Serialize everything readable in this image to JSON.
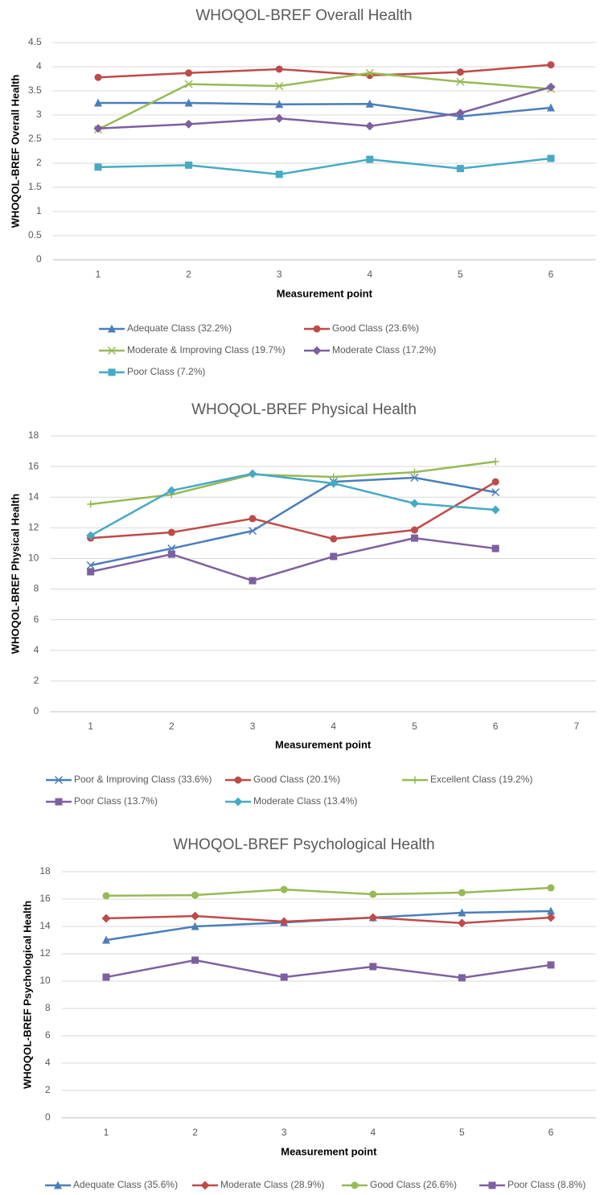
{
  "chart_data": [
    {
      "type": "line",
      "title": "WHOQOL-BREF Overall Health",
      "x_label": "Measurement point",
      "y_label": "WHOQOL-BREF Overall Health",
      "categories": [
        1,
        2,
        3,
        4,
        5,
        6
      ],
      "ylim": [
        0,
        4.5
      ],
      "yticks": [
        0,
        0.5,
        1,
        1.5,
        2,
        2.5,
        3,
        3.5,
        4,
        4.5
      ],
      "grid": true,
      "series": [
        {
          "name": "Adequate Class (32.2%)",
          "color": "#4a7ebb",
          "marker": "triangle",
          "values": [
            3.25,
            3.25,
            3.22,
            3.23,
            2.97,
            3.15
          ]
        },
        {
          "name": "Good Class (23.6%)",
          "color": "#be4b48",
          "marker": "circle",
          "values": [
            3.78,
            3.87,
            3.95,
            3.82,
            3.89,
            4.04
          ]
        },
        {
          "name": "Moderate & Improving Class (19.7%)",
          "color": "#98b954",
          "marker": "x",
          "values": [
            2.7,
            3.64,
            3.6,
            3.87,
            3.69,
            3.54
          ]
        },
        {
          "name": "Moderate Class (17.2%)",
          "color": "#7d60a0",
          "marker": "diamond",
          "values": [
            2.72,
            2.81,
            2.93,
            2.77,
            3.04,
            3.58
          ]
        },
        {
          "name": "Poor Class (7.2%)",
          "color": "#46aac5",
          "marker": "square",
          "values": [
            1.92,
            1.96,
            1.77,
            2.08,
            1.89,
            2.1
          ]
        }
      ]
    },
    {
      "type": "line",
      "title": "WHOQOL-BREF Physical Health",
      "x_label": "Measurement point",
      "y_label": "WHOQOL-BREF Physical Health",
      "categories": [
        1,
        2,
        3,
        4,
        5,
        6,
        7
      ],
      "ylim": [
        0,
        18
      ],
      "yticks": [
        0,
        2,
        4,
        6,
        8,
        10,
        12,
        14,
        16,
        18
      ],
      "grid": true,
      "series": [
        {
          "name": "Poor & Improving Class (33.6%)",
          "color": "#4a7ebb",
          "marker": "x",
          "values": [
            9.55,
            10.65,
            11.8,
            15.0,
            15.27,
            14.32,
            null
          ]
        },
        {
          "name": "Good Class (20.1%)",
          "color": "#be4b48",
          "marker": "circle",
          "values": [
            11.33,
            11.7,
            12.6,
            11.28,
            11.86,
            15.0,
            null
          ]
        },
        {
          "name": "Excellent Class (19.2%)",
          "color": "#98b954",
          "marker": "plus",
          "values": [
            13.54,
            14.17,
            15.48,
            15.32,
            15.63,
            16.32,
            null
          ]
        },
        {
          "name": "Poor Class (13.7%)",
          "color": "#7d60a0",
          "marker": "square",
          "values": [
            9.13,
            10.28,
            8.55,
            10.13,
            11.33,
            10.65,
            null
          ]
        },
        {
          "name": "Moderate Class (13.4%)",
          "color": "#46aac5",
          "marker": "diamond",
          "values": [
            11.49,
            14.43,
            15.53,
            14.9,
            13.59,
            13.17,
            null
          ]
        }
      ]
    },
    {
      "type": "line",
      "title": "WHOQOL-BREF Psychological Health",
      "x_label": "Measurement point",
      "y_label": "WHOQOL-BREF Psychological Health",
      "categories": [
        1,
        2,
        3,
        4,
        5,
        6
      ],
      "ylim": [
        0,
        18
      ],
      "yticks": [
        0,
        2,
        4,
        6,
        8,
        10,
        12,
        14,
        16,
        18
      ],
      "grid": true,
      "series": [
        {
          "name": "Adequate Class (35.6%)",
          "color": "#4a7ebb",
          "marker": "triangle",
          "values": [
            13.0,
            14.0,
            14.29,
            14.65,
            15.0,
            15.12
          ]
        },
        {
          "name": "Moderate Class (28.9%)",
          "color": "#be4b48",
          "marker": "diamond",
          "values": [
            14.59,
            14.76,
            14.35,
            14.65,
            14.24,
            14.65
          ]
        },
        {
          "name": "Good Class (26.6%)",
          "color": "#98b954",
          "marker": "circle",
          "values": [
            16.24,
            16.29,
            16.7,
            16.35,
            16.47,
            16.82
          ]
        },
        {
          "name": "Poor Class (8.8%)",
          "color": "#7d60a0",
          "marker": "square",
          "values": [
            10.29,
            11.53,
            10.29,
            11.06,
            10.24,
            11.18
          ]
        }
      ]
    }
  ]
}
